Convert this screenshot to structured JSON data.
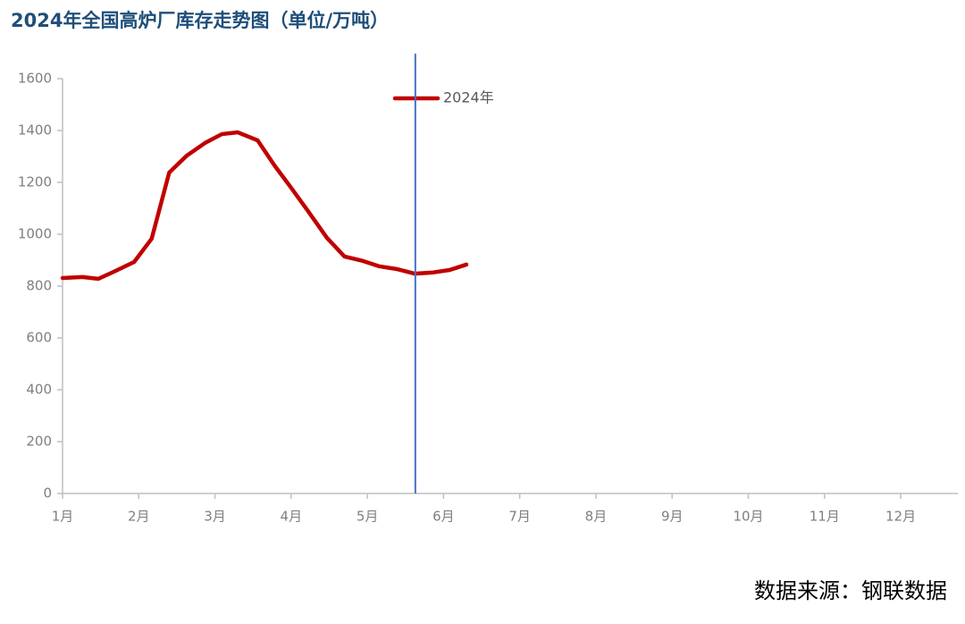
{
  "chart_data": {
    "type": "line",
    "title": "2024年全国高炉厂库存走势图（单位/万吨）",
    "source": "数据来源：钢联数据",
    "x": [
      1.0,
      1.26,
      1.47,
      1.7,
      1.94,
      2.17,
      2.4,
      2.63,
      2.87,
      3.09,
      3.3,
      3.56,
      3.78,
      4.0,
      4.22,
      4.47,
      4.7,
      4.94,
      5.16,
      5.38,
      5.62,
      5.85,
      6.08,
      6.3
    ],
    "series": [
      {
        "name": "2024年",
        "color": "#c00000",
        "values": [
          831,
          835,
          828,
          859,
          893,
          983,
          1238,
          1303,
          1352,
          1386,
          1393,
          1362,
          1266,
          1179,
          1090,
          986,
          914,
          897,
          876,
          866,
          848,
          852,
          862,
          883
        ]
      }
    ],
    "xlim": [
      1,
      12.75
    ],
    "xticks": [
      {
        "value": 1,
        "label": "1月"
      },
      {
        "value": 2,
        "label": "2月"
      },
      {
        "value": 3,
        "label": "3月"
      },
      {
        "value": 4,
        "label": "4月"
      },
      {
        "value": 5,
        "label": "5月"
      },
      {
        "value": 6,
        "label": "6月"
      },
      {
        "value": 7,
        "label": "7月"
      },
      {
        "value": 8,
        "label": "8月"
      },
      {
        "value": 9,
        "label": "9月"
      },
      {
        "value": 10,
        "label": "10月"
      },
      {
        "value": 11,
        "label": "11月"
      },
      {
        "value": 12,
        "label": "12月"
      }
    ],
    "ylim": [
      0,
      1600
    ],
    "yticks": [
      0,
      200,
      400,
      600,
      800,
      1000,
      1200,
      1400,
      1600
    ],
    "vline": {
      "x": 5.63,
      "color": "#4472c4"
    },
    "grid": false
  }
}
